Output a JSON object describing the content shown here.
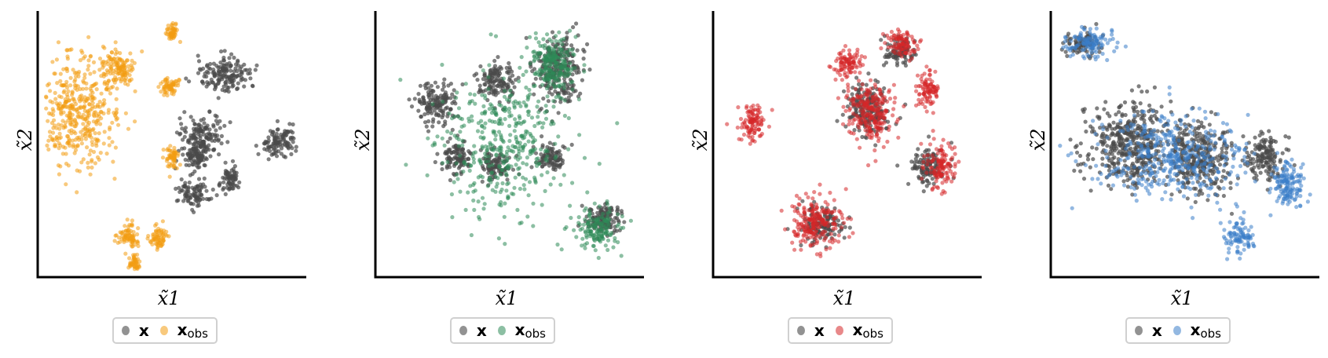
{
  "chart_data": [
    {
      "type": "scatter",
      "xlabel": "x̃1",
      "ylabel": "x̃2",
      "legend": {
        "placement": "bottom-center",
        "entries": [
          "x",
          "x_obs"
        ]
      },
      "series": [
        {
          "name": "x",
          "color": "#4a4a4a",
          "clusters": [
            [
              0.7,
              0.24,
              0.09,
              0.06
            ],
            [
              0.61,
              0.47,
              0.07,
              0.07
            ],
            [
              0.59,
              0.55,
              0.04,
              0.04
            ],
            [
              0.58,
              0.69,
              0.05,
              0.05
            ],
            [
              0.72,
              0.63,
              0.03,
              0.04
            ],
            [
              0.9,
              0.49,
              0.06,
              0.05
            ]
          ]
        },
        {
          "name": "x_obs",
          "color": "#f39c12",
          "clusters": [
            [
              0.15,
              0.38,
              0.14,
              0.2
            ],
            [
              0.3,
              0.22,
              0.07,
              0.06
            ],
            [
              0.49,
              0.28,
              0.03,
              0.03
            ],
            [
              0.5,
              0.55,
              0.02,
              0.04
            ],
            [
              0.45,
              0.85,
              0.03,
              0.04
            ],
            [
              0.34,
              0.85,
              0.04,
              0.04
            ],
            [
              0.36,
              0.95,
              0.02,
              0.03
            ],
            [
              0.5,
              0.08,
              0.02,
              0.03
            ]
          ]
        }
      ]
    },
    {
      "type": "scatter",
      "xlabel": "x̃1",
      "ylabel": "x̃2",
      "legend": {
        "placement": "bottom-center",
        "entries": [
          "x",
          "x_obs"
        ]
      },
      "series": [
        {
          "name": "x",
          "color": "#4a4a4a",
          "clusters": [
            [
              0.68,
              0.22,
              0.08,
              0.12
            ],
            [
              0.45,
              0.26,
              0.06,
              0.07
            ],
            [
              0.23,
              0.35,
              0.06,
              0.08
            ],
            [
              0.45,
              0.58,
              0.05,
              0.05
            ],
            [
              0.85,
              0.78,
              0.06,
              0.06
            ],
            [
              0.3,
              0.55,
              0.05,
              0.06
            ],
            [
              0.65,
              0.55,
              0.05,
              0.05
            ]
          ]
        },
        {
          "name": "x_obs",
          "color": "#2e8b57",
          "clusters": [
            [
              0.48,
              0.5,
              0.22,
              0.24
            ],
            [
              0.83,
              0.82,
              0.07,
              0.07
            ],
            [
              0.66,
              0.2,
              0.08,
              0.1
            ]
          ]
        }
      ]
    },
    {
      "type": "scatter",
      "xlabel": "x̃1",
      "ylabel": "x̃2",
      "legend": {
        "placement": "bottom-center",
        "entries": [
          "x",
          "x_obs"
        ]
      },
      "series": [
        {
          "name": "x",
          "color": "#4a4a4a",
          "clusters": [
            [
              0.58,
              0.38,
              0.07,
              0.1
            ],
            [
              0.4,
              0.8,
              0.07,
              0.06
            ],
            [
              0.8,
              0.58,
              0.06,
              0.06
            ],
            [
              0.7,
              0.15,
              0.05,
              0.05
            ]
          ]
        },
        {
          "name": "x_obs",
          "color": "#d62728",
          "clusters": [
            [
              0.15,
              0.42,
              0.05,
              0.06
            ],
            [
              0.58,
              0.38,
              0.08,
              0.11
            ],
            [
              0.38,
              0.8,
              0.09,
              0.09
            ],
            [
              0.85,
              0.58,
              0.05,
              0.08
            ],
            [
              0.8,
              0.3,
              0.04,
              0.06
            ],
            [
              0.5,
              0.2,
              0.05,
              0.05
            ],
            [
              0.7,
              0.12,
              0.05,
              0.05
            ]
          ]
        }
      ]
    },
    {
      "type": "scatter",
      "xlabel": "x̃1",
      "ylabel": "x̃2",
      "legend": {
        "placement": "bottom-center",
        "entries": [
          "x",
          "x_obs"
        ]
      },
      "series": [
        {
          "name": "x",
          "color": "#4a4a4a",
          "clusters": [
            [
              0.12,
              0.12,
              0.06,
              0.04
            ],
            [
              0.3,
              0.5,
              0.14,
              0.14
            ],
            [
              0.55,
              0.55,
              0.1,
              0.12
            ],
            [
              0.8,
              0.55,
              0.06,
              0.08
            ]
          ]
        },
        {
          "name": "x_obs",
          "color": "#3a7ec8",
          "clusters": [
            [
              0.15,
              0.12,
              0.07,
              0.05
            ],
            [
              0.45,
              0.55,
              0.25,
              0.15
            ],
            [
              0.88,
              0.65,
              0.06,
              0.08
            ],
            [
              0.7,
              0.85,
              0.05,
              0.05
            ]
          ]
        }
      ]
    }
  ]
}
